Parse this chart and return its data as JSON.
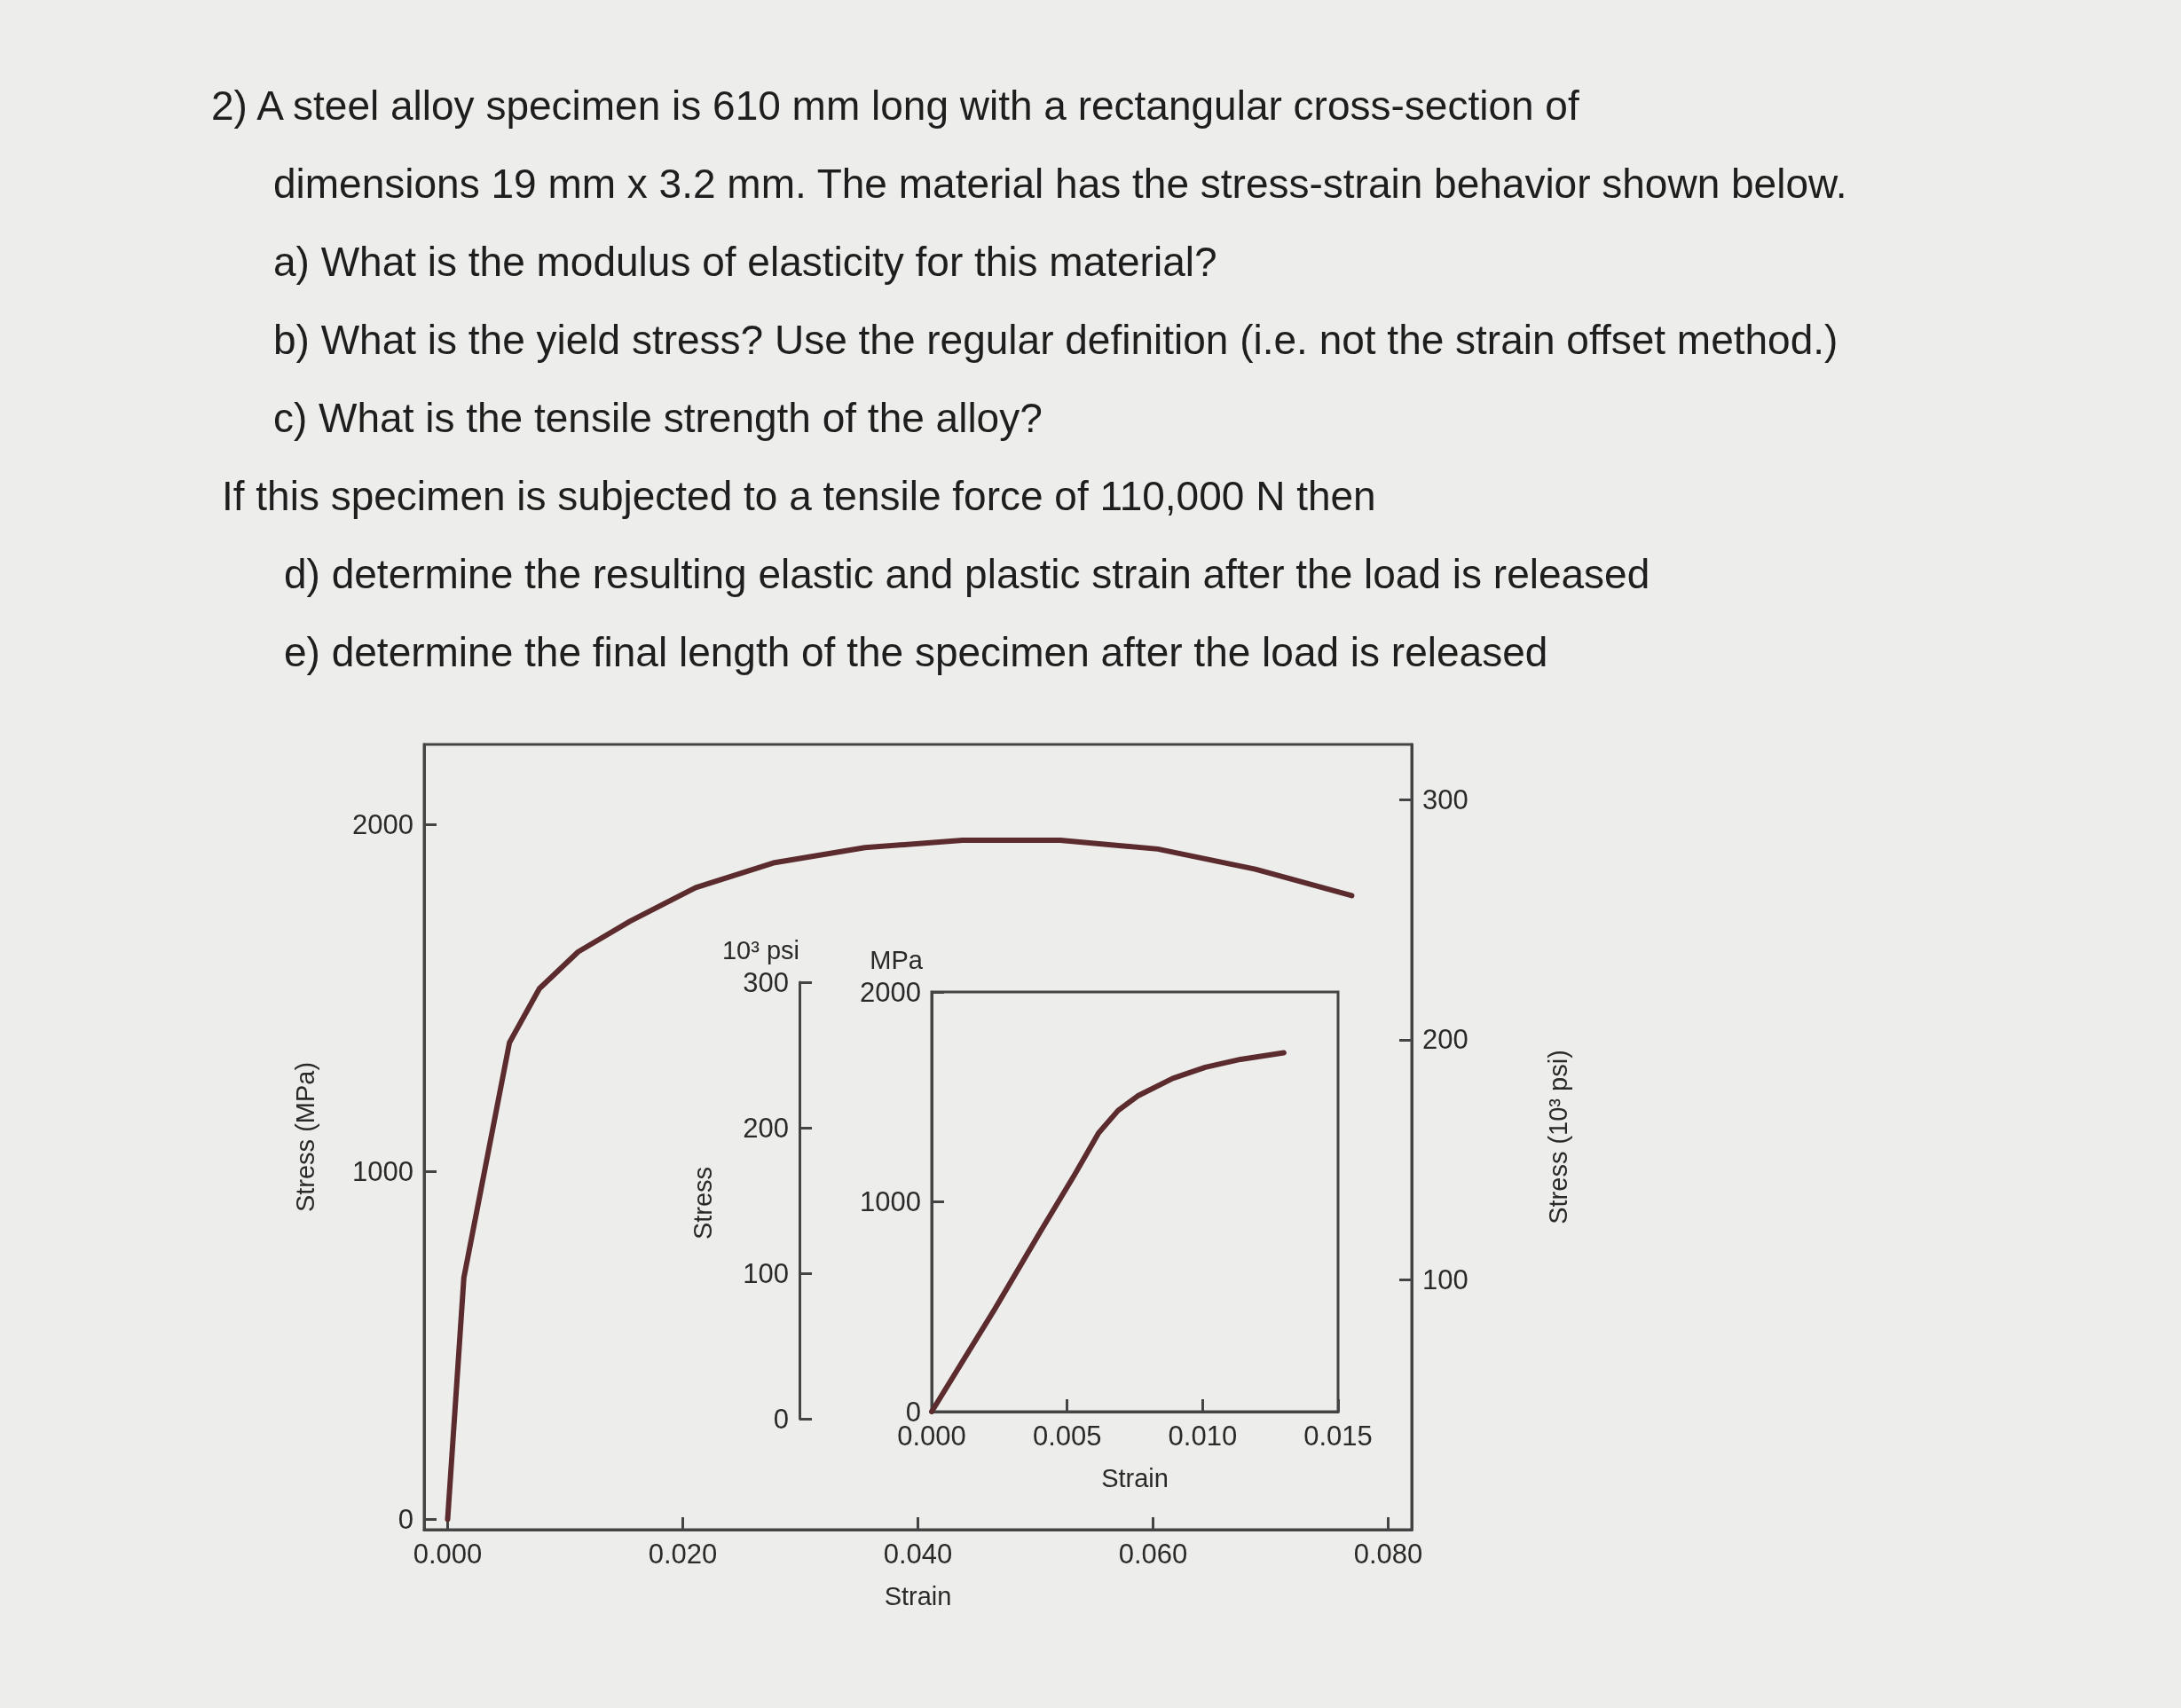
{
  "chart_data": [
    {
      "type": "line",
      "annotations": [
        "2) A steel alloy specimen is 610 mm long with a rectangular cross-section of",
        "dimensions 19 mm x 3.2 mm.  The material has the stress-strain behavior shown below.",
        "a) What is the modulus of elasticity for this material?",
        "b) What is the yield stress?  Use the regular definition (i.e. not the strain offset method.)",
        "c) What is the tensile strength of the alloy?",
        "If this specimen is subjected to a tensile force of 110,000 N then",
        "d) determine the resulting elastic and plastic strain after the load is released",
        "e) determine the final length of the specimen after the load is released"
      ],
      "xlabel": "Strain",
      "ylabel": "Stress (MPa)",
      "y2label": "Stress (10³ psi)",
      "x": [
        0,
        0.00138,
        0.00526,
        0.0078,
        0.0111,
        0.0155,
        0.0211,
        0.0277,
        0.0355,
        0.0438,
        0.0521,
        0.0604,
        0.0687,
        0.0769
      ],
      "series": [
        {
          "color": "#5b2b2e",
          "values": [
            0,
            695,
            1372,
            1527,
            1633,
            1721,
            1818,
            1889,
            1933,
            1954,
            1954,
            1929,
            1871,
            1795
          ]
        }
      ],
      "xlim": [
        -0.002,
        0.082
      ],
      "xticks": [
        {
          "value": 0,
          "label": "0.000"
        },
        {
          "value": 0.02,
          "label": "0.020"
        },
        {
          "value": 0.04,
          "label": "0.040"
        },
        {
          "value": 0.06,
          "label": "0.060"
        },
        {
          "value": 0.08,
          "label": "0.080"
        }
      ],
      "ylim": [
        -30,
        2230
      ],
      "yticks": [
        0,
        1000,
        2000
      ],
      "y2lim": [
        -4,
        323
      ],
      "y2ticks": [
        100,
        200,
        300
      ]
    },
    {
      "type": "line",
      "xlabel": "Strain",
      "ylabel": "MPa",
      "y2label": "10³ psi",
      "annotations": [
        "Stress"
      ],
      "x": [
        0,
        0.00233,
        0.004,
        0.00528,
        0.00616,
        0.00688,
        0.0076,
        0.0089,
        0.0101,
        0.0114,
        0.013
      ],
      "series": [
        {
          "color": "#5b2b2e",
          "values": [
            0,
            489,
            855,
            1130,
            1328,
            1435,
            1504,
            1588,
            1641,
            1679,
            1710
          ]
        }
      ],
      "xlim": [
        0,
        0.015
      ],
      "xticks": [
        {
          "value": 0,
          "label": "0.000"
        },
        {
          "value": 0.005,
          "label": "0.005"
        },
        {
          "value": 0.01,
          "label": "0.010"
        },
        {
          "value": 0.015,
          "label": "0.015"
        }
      ],
      "ylim": [
        0,
        2000
      ],
      "yticks": [
        0,
        1000,
        2000
      ],
      "y2lim": [
        0,
        300
      ],
      "y2ticks": [
        0,
        100,
        200,
        300
      ]
    }
  ]
}
